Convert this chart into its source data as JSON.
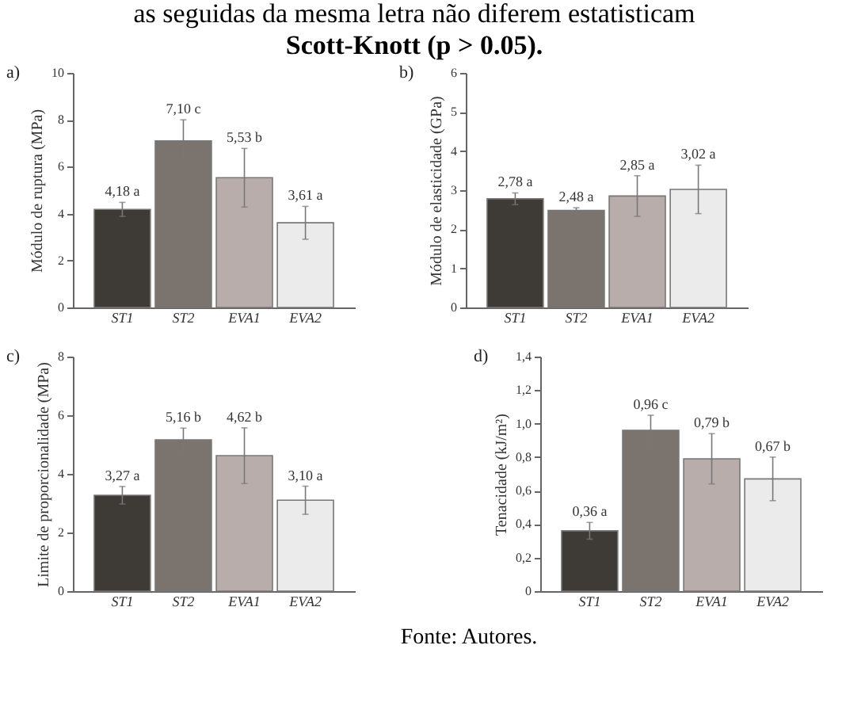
{
  "chart_data": [
    {
      "type": "bar",
      "title": "as seguidas da mesma letra não diferem estatisticam",
      "subtitle": "Scott-Knott (p > 0.05).",
      "annotations": [
        "a)"
      ],
      "ylabel": "Módulo de ruptura (MPa)",
      "categories": [
        "ST1",
        "ST2",
        "EVA1",
        "EVA2"
      ],
      "values": [
        4.18,
        7.1,
        5.53,
        3.61
      ],
      "errors": [
        0.3,
        0.9,
        1.25,
        0.7
      ],
      "colors": [
        "#3e3b37",
        "#7b736e",
        "#b8adaa",
        "#ecebeb"
      ],
      "value_labels": [
        "4,18 a",
        "7,10 c",
        "5,53 b",
        "3,61 a"
      ],
      "ylim": [
        0,
        10
      ],
      "yticks": [
        0,
        2,
        4,
        6,
        8,
        10
      ],
      "grid": false,
      "legend": false
    },
    {
      "type": "bar",
      "annotations": [
        "b)"
      ],
      "ylabel": "Módulo de elasticidade (GPa)",
      "categories": [
        "ST1",
        "ST2",
        "EVA1",
        "EVA2"
      ],
      "values": [
        2.78,
        2.48,
        2.85,
        3.02
      ],
      "errors": [
        0.15,
        0.07,
        0.52,
        0.62
      ],
      "colors": [
        "#3e3b37",
        "#7b736e",
        "#b8adaa",
        "#ecebeb"
      ],
      "value_labels": [
        "2,78 a",
        "2,48 a",
        "2,85 a",
        "3,02 a"
      ],
      "ylim": [
        0,
        6
      ],
      "yticks": [
        0,
        1,
        2,
        3,
        4,
        5,
        6
      ],
      "grid": false,
      "legend": false
    },
    {
      "type": "bar",
      "annotations": [
        "c)"
      ],
      "ylabel": "Limite de proporcionalidade (MPa)",
      "categories": [
        "ST1",
        "ST2",
        "EVA1",
        "EVA2"
      ],
      "values": [
        3.27,
        5.16,
        4.62,
        3.1
      ],
      "errors": [
        0.3,
        0.4,
        0.95,
        0.48
      ],
      "colors": [
        "#3e3b37",
        "#7b736e",
        "#b8adaa",
        "#ecebeb"
      ],
      "value_labels": [
        "3,27 a",
        "5,16 b",
        "4,62 b",
        "3,10 a"
      ],
      "ylim": [
        0,
        8
      ],
      "yticks": [
        0,
        2,
        4,
        6,
        8
      ],
      "grid": false,
      "legend": false
    },
    {
      "type": "bar",
      "annotations": [
        "d)",
        "Fonte: Autores."
      ],
      "ylabel": "Tenacidade (kJ/m²)",
      "categories": [
        "ST1",
        "ST2",
        "EVA1",
        "EVA2"
      ],
      "values": [
        0.36,
        0.96,
        0.79,
        0.67
      ],
      "errors": [
        0.05,
        0.09,
        0.15,
        0.13
      ],
      "colors": [
        "#3e3b37",
        "#7b736e",
        "#b8adaa",
        "#ecebeb"
      ],
      "value_labels": [
        "0,36 a",
        "0,96 c",
        "0,79 b",
        "0,67 b"
      ],
      "ylim": [
        0,
        1.4
      ],
      "yticks": [
        0,
        {
          "value": 0.2,
          "label": "0,2"
        },
        {
          "value": 0.4,
          "label": "0,4"
        },
        {
          "value": 0.6,
          "label": "0,6"
        },
        {
          "value": 0.8,
          "label": "0,8"
        },
        {
          "value": 1.0,
          "label": "1,0"
        },
        {
          "value": 1.2,
          "label": "1,2"
        },
        {
          "value": 1.4,
          "label": "1,4"
        }
      ],
      "grid": false,
      "legend": false
    }
  ]
}
